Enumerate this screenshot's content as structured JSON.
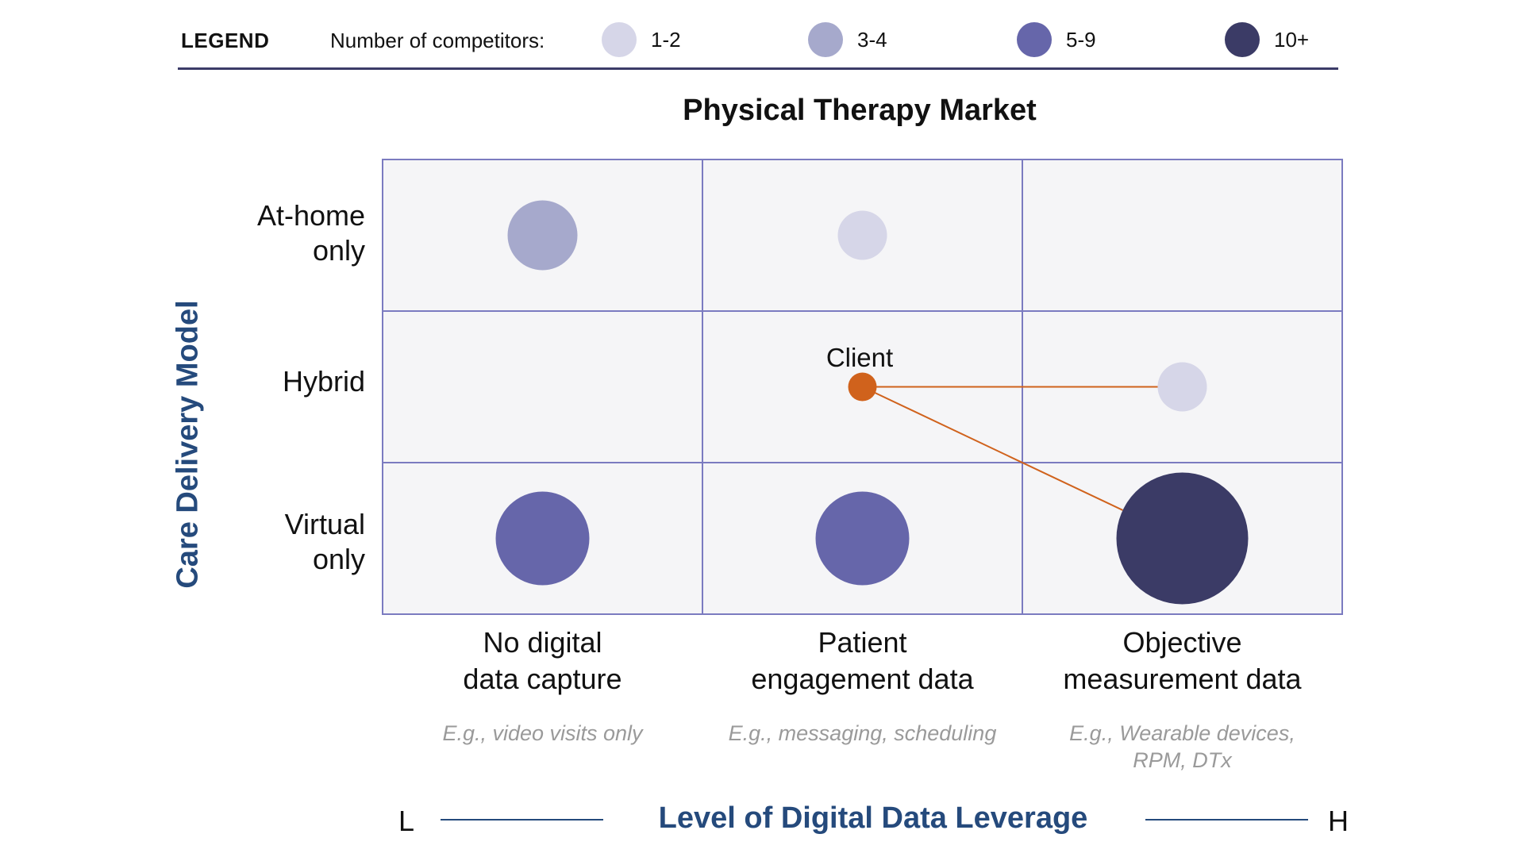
{
  "legend": {
    "title": "LEGEND",
    "caption": "Number of competitors:",
    "items": [
      {
        "label": "1-2",
        "color": "#d6d6e8"
      },
      {
        "label": "3-4",
        "color": "#a6a9cc"
      },
      {
        "label": "5-9",
        "color": "#6666aa"
      },
      {
        "label": "10+",
        "color": "#3b3b66"
      }
    ]
  },
  "title": "Physical Therapy Market",
  "y_axis": {
    "title": "Care Delivery Model",
    "rows": [
      {
        "line1": "At-home",
        "line2": "only"
      },
      {
        "line1": "Hybrid",
        "line2": ""
      },
      {
        "line1": "Virtual",
        "line2": "only"
      }
    ]
  },
  "x_axis": {
    "title": "Level of Digital Data Leverage",
    "low": "L",
    "high": "H",
    "columns": [
      {
        "line1": "No digital",
        "line2": "data capture",
        "example1": "E.g., video visits only",
        "example2": ""
      },
      {
        "line1": "Patient",
        "line2": "engagement data",
        "example1": "E.g., messaging, scheduling",
        "example2": ""
      },
      {
        "line1": "Objective",
        "line2": "measurement data",
        "example1": "E.g., Wearable devices,",
        "example2": "RPM, DTx"
      }
    ]
  },
  "bubbles": [
    {
      "row": 0,
      "col": 0,
      "category": "3-4"
    },
    {
      "row": 0,
      "col": 1,
      "category": "1-2"
    },
    {
      "row": 1,
      "col": 2,
      "category": "1-2"
    },
    {
      "row": 2,
      "col": 0,
      "category": "5-9"
    },
    {
      "row": 2,
      "col": 1,
      "category": "5-9"
    },
    {
      "row": 2,
      "col": 2,
      "category": "10+"
    }
  ],
  "client": {
    "label": "Client",
    "row": 1,
    "col": 1,
    "color": "#d0621c",
    "connects_to": [
      {
        "row": 1,
        "col": 2
      },
      {
        "row": 2,
        "col": 2
      }
    ]
  },
  "colors": {
    "grid_border": "#7b7bc0",
    "cell_fill": "#f5f5f7",
    "axis_title": "#254a7c"
  }
}
